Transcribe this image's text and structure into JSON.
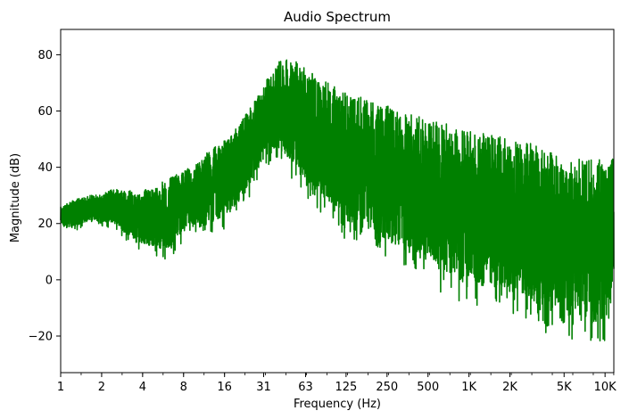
{
  "chart_data": {
    "type": "line",
    "title": "Audio Spectrum",
    "xlabel": "Frequency (Hz)",
    "ylabel": "Magnitude (dB)",
    "x_scale": "log2",
    "xlim": [
      1,
      11600
    ],
    "ylim": [
      -33,
      89
    ],
    "grid": false,
    "x_ticks": [
      {
        "value": 1,
        "label": "1"
      },
      {
        "value": 2,
        "label": "2"
      },
      {
        "value": 4,
        "label": "4"
      },
      {
        "value": 8,
        "label": "8"
      },
      {
        "value": 16,
        "label": "16"
      },
      {
        "value": 31,
        "label": "31"
      },
      {
        "value": 63,
        "label": "63"
      },
      {
        "value": 125,
        "label": "125"
      },
      {
        "value": 250,
        "label": "250"
      },
      {
        "value": 500,
        "label": "500"
      },
      {
        "value": 1000,
        "label": "1K"
      },
      {
        "value": 2000,
        "label": "2K"
      },
      {
        "value": 5000,
        "label": "5K"
      },
      {
        "value": 10000,
        "label": "10K"
      }
    ],
    "y_ticks": [
      {
        "value": -20,
        "label": "−20"
      },
      {
        "value": 0,
        "label": "0"
      },
      {
        "value": 20,
        "label": "20"
      },
      {
        "value": 40,
        "label": "40"
      },
      {
        "value": 60,
        "label": "60"
      },
      {
        "value": 80,
        "label": "80"
      }
    ],
    "series": [
      {
        "color": "#008000",
        "envelope": {
          "description_free": true,
          "x": [
            1,
            1.3,
            1.6,
            2,
            2.5,
            3,
            4,
            5,
            6,
            8,
            10,
            12,
            16,
            20,
            25,
            31,
            40,
            50,
            63,
            80,
            100,
            125,
            160,
            200,
            250,
            315,
            400,
            500,
            630,
            800,
            1000,
            1250,
            1600,
            2000,
            2500,
            3150,
            4000,
            5000,
            6300,
            8000,
            10000,
            11600
          ],
          "upper": [
            26,
            29,
            30,
            31,
            33,
            32,
            32,
            34,
            36,
            39,
            42,
            46,
            50,
            55,
            62,
            70,
            78,
            80,
            76,
            72,
            70,
            67,
            66,
            64,
            63,
            60,
            60,
            58,
            57,
            55,
            54,
            53,
            52,
            51,
            50,
            49,
            47,
            45,
            45,
            44,
            44,
            44
          ],
          "lower": [
            18,
            17,
            20,
            19,
            18,
            14,
            10,
            8,
            6,
            14,
            14,
            16,
            18,
            22,
            30,
            40,
            42,
            36,
            30,
            24,
            20,
            14,
            12,
            10,
            6,
            4,
            2,
            0,
            -5,
            -8,
            -8,
            -10,
            -10,
            -12,
            -14,
            -18,
            -20,
            -22,
            -24,
            -25,
            -22,
            -5
          ]
        }
      }
    ]
  }
}
